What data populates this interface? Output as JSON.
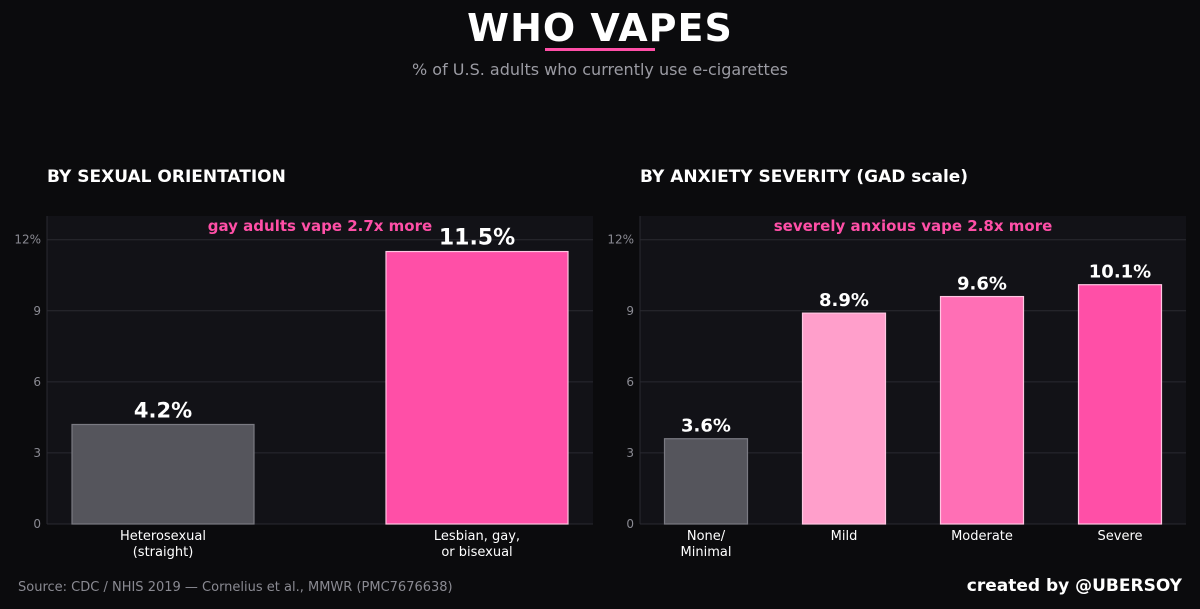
{
  "header": {
    "title": "WHO VAPES",
    "subtitle": "% of U.S. adults who currently use e-cigarettes"
  },
  "colors": {
    "background": "#0b0b0d",
    "panel": "#121217",
    "accent": "#ff4fa7",
    "grey_bar": "#55555c",
    "light_pink": "#ff9fcb",
    "mid_pink": "#ff6fb5",
    "hot_pink": "#ff4fa7"
  },
  "chart_data": [
    {
      "type": "bar",
      "title": "BY SEXUAL ORIENTATION",
      "annotation": "gay adults vape 2.7x more",
      "categories": [
        "Heterosexual\n(straight)",
        "Lesbian, gay,\nor bisexual"
      ],
      "values": [
        4.2,
        11.5
      ],
      "value_labels": [
        "4.2%",
        "11.5%"
      ],
      "bar_colors": [
        "#55555c",
        "#ff4fa7"
      ],
      "yticks": [
        0,
        3,
        6,
        9,
        12
      ],
      "ytick_labels": [
        "0",
        "3",
        "6",
        "9",
        "12%"
      ],
      "ylim": [
        0,
        13
      ],
      "grid": true
    },
    {
      "type": "bar",
      "title": "BY ANXIETY SEVERITY  (GAD scale)",
      "annotation": "severely anxious vape 2.8x more",
      "categories": [
        "None/\nMinimal",
        "Mild",
        "Moderate",
        "Severe"
      ],
      "values": [
        3.6,
        8.9,
        9.6,
        10.1
      ],
      "value_labels": [
        "3.6%",
        "8.9%",
        "9.6%",
        "10.1%"
      ],
      "bar_colors": [
        "#55555c",
        "#ff9fcb",
        "#ff6fb5",
        "#ff4fa7"
      ],
      "yticks": [
        0,
        3,
        6,
        9,
        12
      ],
      "ytick_labels": [
        "0",
        "3",
        "6",
        "9",
        "12%"
      ],
      "ylim": [
        0,
        13
      ],
      "grid": true
    }
  ],
  "footer": {
    "source": "Source: CDC / NHIS 2019 — Cornelius et al., MMWR (PMC7676638)",
    "credit": "created by @UBERSOY"
  }
}
